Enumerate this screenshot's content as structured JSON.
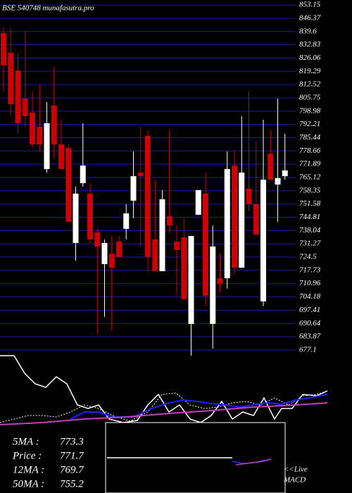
{
  "chart_data": {
    "type": "candlestick",
    "title": "BSE 540748 munafasutra.pro",
    "up_color": "#ffffff",
    "down_color": "#cc0000",
    "grid": true,
    "grid_color": "#1c1ca8",
    "ylim": [
      672.4,
      855.7
    ],
    "yticks": [
      853.15,
      846.37,
      839.6,
      832.83,
      826.06,
      819.29,
      812.52,
      805.75,
      798.98,
      792.21,
      785.44,
      778.66,
      771.89,
      765.12,
      758.35,
      751.58,
      744.81,
      738.04,
      731.27,
      724.5,
      717.73,
      710.96,
      704.18,
      697.41,
      690.64,
      683.87,
      677.1
    ],
    "candles": [
      {
        "open": 838.8,
        "high": 842.0,
        "low": 809.0,
        "close": 822.3
      },
      {
        "open": 828.7,
        "high": 841.3,
        "low": 796.4,
        "close": 802.5
      },
      {
        "open": 819.7,
        "high": 828.7,
        "low": 787.4,
        "close": 792.8
      },
      {
        "open": 805.4,
        "high": 839.5,
        "low": 791.0,
        "close": 796.4
      },
      {
        "open": 798.2,
        "high": 809.0,
        "low": 780.2,
        "close": 782.0
      },
      {
        "open": 791.0,
        "high": 812.6,
        "low": 778.4,
        "close": 782.0
      },
      {
        "open": 769.4,
        "high": 803.6,
        "low": 767.6,
        "close": 792.8
      },
      {
        "open": 801.8,
        "high": 821.5,
        "low": 774.8,
        "close": 782.0
      },
      {
        "open": 782.0,
        "high": 794.6,
        "low": 769.4,
        "close": 769.4
      },
      {
        "open": 780.2,
        "high": 782.0,
        "low": 742.5,
        "close": 742.5
      },
      {
        "open": 731.7,
        "high": 760.5,
        "low": 722.7,
        "close": 756.9
      },
      {
        "open": 762.2,
        "high": 792.8,
        "low": 760.5,
        "close": 771.2
      },
      {
        "open": 756.9,
        "high": 762.2,
        "low": 731.7,
        "close": 733.5
      },
      {
        "open": 737.1,
        "high": 738.9,
        "low": 685.0,
        "close": 729.9
      },
      {
        "open": 720.9,
        "high": 733.5,
        "low": 694.0,
        "close": 731.7
      },
      {
        "open": 726.3,
        "high": 735.3,
        "low": 686.8,
        "close": 719.1
      },
      {
        "open": 732.4,
        "high": 735.3,
        "low": 724.5,
        "close": 724.5
      },
      {
        "open": 738.9,
        "high": 751.5,
        "low": 733.5,
        "close": 746.8
      },
      {
        "open": 753.3,
        "high": 778.4,
        "low": 744.3,
        "close": 765.8
      },
      {
        "open": 767.6,
        "high": 791.0,
        "low": 729.9,
        "close": 765.8
      },
      {
        "open": 786.3,
        "high": 789.2,
        "low": 717.3,
        "close": 724.5
      },
      {
        "open": 733.5,
        "high": 764.0,
        "low": 717.3,
        "close": 717.3
      },
      {
        "open": 717.3,
        "high": 758.7,
        "low": 717.3,
        "close": 754.0
      },
      {
        "open": 745.4,
        "high": 789.2,
        "low": 737.1,
        "close": 740.7
      },
      {
        "open": 732.4,
        "high": 740.7,
        "low": 704.8,
        "close": 728.1
      },
      {
        "open": 734.6,
        "high": 744.3,
        "low": 703.0,
        "close": 703.0
      },
      {
        "open": 690.4,
        "high": 735.3,
        "low": 674.2,
        "close": 735.3
      },
      {
        "open": 746.1,
        "high": 758.7,
        "low": 746.1,
        "close": 758.7
      },
      {
        "open": 756.9,
        "high": 767.6,
        "low": 699.4,
        "close": 704.8
      },
      {
        "open": 690.4,
        "high": 740.7,
        "low": 677.8,
        "close": 729.9
      },
      {
        "open": 713.7,
        "high": 726.3,
        "low": 706.6,
        "close": 710.9
      },
      {
        "open": 713.7,
        "high": 778.4,
        "low": 708.4,
        "close": 769.4
      },
      {
        "open": 771.2,
        "high": 778.4,
        "low": 715.5,
        "close": 719.1
      },
      {
        "open": 719.1,
        "high": 796.4,
        "low": 719.1,
        "close": 767.6
      },
      {
        "open": 759.4,
        "high": 809.0,
        "low": 747.9,
        "close": 751.5
      },
      {
        "open": 751.5,
        "high": 783.8,
        "low": 736.0,
        "close": 736.0
      },
      {
        "open": 701.9,
        "high": 794.6,
        "low": 699.4,
        "close": 764.0
      },
      {
        "open": 777.3,
        "high": 789.2,
        "low": 764.0,
        "close": 764.0
      },
      {
        "open": 761.5,
        "high": 805.4,
        "low": 742.5,
        "close": 764.8
      },
      {
        "open": 765.8,
        "high": 787.4,
        "low": 764.0,
        "close": 768.7
      }
    ]
  },
  "summary": [
    {
      "label": "5MA  :",
      "value": 773.3
    },
    {
      "label": "Price  :",
      "value": 771.7
    },
    {
      "label": "12MA :",
      "value": 769.7
    },
    {
      "label": "50MA :",
      "value": 755.2
    }
  ],
  "macd_label": [
    "<<Live",
    "MACD"
  ]
}
